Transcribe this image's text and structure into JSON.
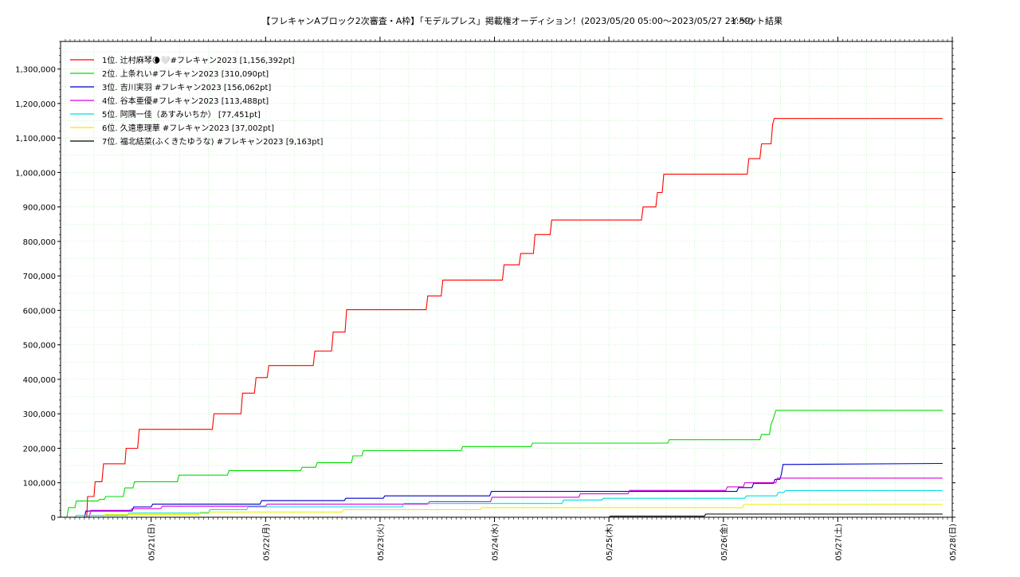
{
  "chart_data": {
    "type": "line",
    "title": "【フレキャンAブロック2次審査・A枠】「モデルプレス」掲載権オーディション！(2023/05/20 05:00〜2023/05/27 21:59)",
    "subtitle": "イベント結果",
    "xlabel": "",
    "ylabel": "",
    "grid": true,
    "legend_position": "top-left",
    "x_range": [
      "2023-05-20 05:00",
      "2023-05-28 00:00"
    ],
    "ylim": [
      0,
      1380000
    ],
    "x_ticks": [
      "05/21(日)",
      "05/22(月)",
      "05/23(火)",
      "05/24(水)",
      "05/25(木)",
      "05/26(金)",
      "05/27(土)",
      "05/28(日)"
    ],
    "x_tick_dates": [
      "2023-05-21 00:00",
      "2023-05-22 00:00",
      "2023-05-23 00:00",
      "2023-05-24 00:00",
      "2023-05-25 00:00",
      "2023-05-26 00:00",
      "2023-05-27 00:00",
      "2023-05-28 00:00"
    ],
    "y_ticks": [
      "0",
      "100,000",
      "200,000",
      "300,000",
      "400,000",
      "500,000",
      "600,000",
      "700,000",
      "800,000",
      "900,000",
      "1,000,000",
      "1,100,000",
      "1,200,000",
      "1,300,000"
    ],
    "y_tick_values": [
      0,
      100000,
      200000,
      300000,
      400000,
      500000,
      600000,
      700000,
      800000,
      900000,
      1000000,
      1100000,
      1200000,
      1300000
    ],
    "series": [
      {
        "name": "1位. 辻村麻琴🌘🤍#フレキャン2023 [1,156,392pt]",
        "color": "#ff0000",
        "points": [
          [
            "2023-05-20 10:30",
            0
          ],
          [
            "2023-05-20 10:40",
            60000
          ],
          [
            "2023-05-20 12:00",
            60000
          ],
          [
            "2023-05-20 12:15",
            103000
          ],
          [
            "2023-05-20 13:40",
            103000
          ],
          [
            "2023-05-20 14:00",
            155000
          ],
          [
            "2023-05-20 18:30",
            155000
          ],
          [
            "2023-05-20 18:45",
            200000
          ],
          [
            "2023-05-20 21:10",
            200000
          ],
          [
            "2023-05-20 21:30",
            255000
          ],
          [
            "2023-05-21 12:50",
            255000
          ],
          [
            "2023-05-21 13:10",
            300000
          ],
          [
            "2023-05-21 18:50",
            300000
          ],
          [
            "2023-05-21 19:10",
            360000
          ],
          [
            "2023-05-21 21:40",
            360000
          ],
          [
            "2023-05-21 22:00",
            405000
          ],
          [
            "2023-05-22 00:20",
            405000
          ],
          [
            "2023-05-22 00:40",
            440000
          ],
          [
            "2023-05-22 10:00",
            440000
          ],
          [
            "2023-05-22 10:20",
            482000
          ],
          [
            "2023-05-22 13:50",
            482000
          ],
          [
            "2023-05-22 14:10",
            537000
          ],
          [
            "2023-05-22 16:40",
            537000
          ],
          [
            "2023-05-22 17:00",
            602000
          ],
          [
            "2023-05-23 09:40",
            602000
          ],
          [
            "2023-05-23 10:00",
            642000
          ],
          [
            "2023-05-23 12:50",
            642000
          ],
          [
            "2023-05-23 13:10",
            688000
          ],
          [
            "2023-05-24 01:40",
            688000
          ],
          [
            "2023-05-24 02:00",
            732000
          ],
          [
            "2023-05-24 05:10",
            732000
          ],
          [
            "2023-05-24 05:30",
            765000
          ],
          [
            "2023-05-24 08:10",
            765000
          ],
          [
            "2023-05-24 08:30",
            820000
          ],
          [
            "2023-05-24 11:40",
            820000
          ],
          [
            "2023-05-24 12:00",
            862000
          ],
          [
            "2023-05-25 06:50",
            862000
          ],
          [
            "2023-05-25 07:10",
            900000
          ],
          [
            "2023-05-25 09:50",
            900000
          ],
          [
            "2023-05-25 10:10",
            942000
          ],
          [
            "2023-05-25 11:10",
            942000
          ],
          [
            "2023-05-25 11:30",
            995000
          ],
          [
            "2023-05-26 05:00",
            995000
          ],
          [
            "2023-05-26 05:20",
            1040000
          ],
          [
            "2023-05-26 07:40",
            1040000
          ],
          [
            "2023-05-26 08:00",
            1083000
          ],
          [
            "2023-05-26 10:00",
            1083000
          ],
          [
            "2023-05-26 10:20",
            1140000
          ],
          [
            "2023-05-26 10:40",
            1156392
          ],
          [
            "2023-05-27 21:59",
            1156392
          ]
        ]
      },
      {
        "name": "2位. 上条れい#フレキャン2023 [310,090pt]",
        "color": "#00dd00",
        "points": [
          [
            "2023-05-20 06:20",
            0
          ],
          [
            "2023-05-20 06:40",
            28000
          ],
          [
            "2023-05-20 08:00",
            28000
          ],
          [
            "2023-05-20 08:20",
            47000
          ],
          [
            "2023-05-20 12:50",
            47000
          ],
          [
            "2023-05-20 13:10",
            52000
          ],
          [
            "2023-05-20 14:10",
            52000
          ],
          [
            "2023-05-20 14:30",
            60000
          ],
          [
            "2023-05-20 18:10",
            60000
          ],
          [
            "2023-05-20 18:30",
            85000
          ],
          [
            "2023-05-20 20:10",
            85000
          ],
          [
            "2023-05-20 20:30",
            103000
          ],
          [
            "2023-05-21 05:30",
            103000
          ],
          [
            "2023-05-21 05:50",
            122000
          ],
          [
            "2023-05-21 16:00",
            122000
          ],
          [
            "2023-05-21 16:20",
            135000
          ],
          [
            "2023-05-22 07:20",
            135000
          ],
          [
            "2023-05-22 07:40",
            145000
          ],
          [
            "2023-05-22 10:30",
            145000
          ],
          [
            "2023-05-22 10:50",
            158000
          ],
          [
            "2023-05-22 18:00",
            158000
          ],
          [
            "2023-05-22 18:20",
            178000
          ],
          [
            "2023-05-22 20:10",
            178000
          ],
          [
            "2023-05-22 20:30",
            193000
          ],
          [
            "2023-05-23 17:00",
            193000
          ],
          [
            "2023-05-23 17:20",
            205000
          ],
          [
            "2023-05-24 07:40",
            205000
          ],
          [
            "2023-05-24 08:00",
            215000
          ],
          [
            "2023-05-25 12:20",
            215000
          ],
          [
            "2023-05-25 12:40",
            225000
          ],
          [
            "2023-05-26 07:40",
            225000
          ],
          [
            "2023-05-26 08:00",
            240000
          ],
          [
            "2023-05-26 09:40",
            240000
          ],
          [
            "2023-05-26 10:00",
            270000
          ],
          [
            "2023-05-26 10:20",
            280000
          ],
          [
            "2023-05-26 11:00",
            310090
          ],
          [
            "2023-05-27 21:59",
            310090
          ]
        ]
      },
      {
        "name": "3位. 吉川実羽 #フレキャン2023 [156,062pt]",
        "color": "#0000cc",
        "points": [
          [
            "2023-05-20 10:00",
            0
          ],
          [
            "2023-05-20 10:20",
            18000
          ],
          [
            "2023-05-20 20:00",
            18000
          ],
          [
            "2023-05-20 20:20",
            30000
          ],
          [
            "2023-05-21 00:00",
            30000
          ],
          [
            "2023-05-21 00:20",
            38000
          ],
          [
            "2023-05-21 22:50",
            38000
          ],
          [
            "2023-05-21 23:10",
            48000
          ],
          [
            "2023-05-22 16:30",
            48000
          ],
          [
            "2023-05-22 16:50",
            55000
          ],
          [
            "2023-05-23 00:40",
            55000
          ],
          [
            "2023-05-23 01:00",
            62000
          ],
          [
            "2023-05-23 23:00",
            62000
          ],
          [
            "2023-05-23 23:20",
            75000
          ],
          [
            "2023-05-26 02:50",
            75000
          ],
          [
            "2023-05-26 03:10",
            86000
          ],
          [
            "2023-05-26 06:00",
            86000
          ],
          [
            "2023-05-26 06:20",
            98000
          ],
          [
            "2023-05-26 10:30",
            98000
          ],
          [
            "2023-05-26 10:50",
            110000
          ],
          [
            "2023-05-26 11:50",
            110000
          ],
          [
            "2023-05-26 12:10",
            125000
          ],
          [
            "2023-05-26 12:30",
            153000
          ],
          [
            "2023-05-27 21:59",
            156062
          ]
        ]
      },
      {
        "name": "4位. 谷本亜優#フレキャン2023 [113,488pt]",
        "color": "#dd00dd",
        "points": [
          [
            "2023-05-20 11:00",
            0
          ],
          [
            "2023-05-20 11:20",
            20000
          ],
          [
            "2023-05-20 19:40",
            20000
          ],
          [
            "2023-05-20 20:00",
            25000
          ],
          [
            "2023-05-21 02:00",
            25000
          ],
          [
            "2023-05-21 02:20",
            32000
          ],
          [
            "2023-05-22 00:00",
            32000
          ],
          [
            "2023-05-22 00:20",
            38000
          ],
          [
            "2023-05-23 10:00",
            38000
          ],
          [
            "2023-05-23 10:20",
            45000
          ],
          [
            "2023-05-23 23:10",
            45000
          ],
          [
            "2023-05-23 23:30",
            58000
          ],
          [
            "2023-05-24 17:40",
            58000
          ],
          [
            "2023-05-24 18:00",
            68000
          ],
          [
            "2023-05-25 04:00",
            68000
          ],
          [
            "2023-05-25 04:20",
            78000
          ],
          [
            "2023-05-26 00:30",
            78000
          ],
          [
            "2023-05-26 00:50",
            88000
          ],
          [
            "2023-05-26 04:10",
            88000
          ],
          [
            "2023-05-26 04:30",
            100000
          ],
          [
            "2023-05-26 11:00",
            100000
          ],
          [
            "2023-05-26 11:20",
            113488
          ],
          [
            "2023-05-27 21:59",
            113488
          ]
        ]
      },
      {
        "name": "5位. 阿隅一佳（あすみいちか） [77,451pt]",
        "color": "#00dddd",
        "points": [
          [
            "2023-05-20 08:00",
            0
          ],
          [
            "2023-05-20 08:20",
            5000
          ],
          [
            "2023-05-20 19:00",
            5000
          ],
          [
            "2023-05-20 19:20",
            12000
          ],
          [
            "2023-05-21 12:00",
            12000
          ],
          [
            "2023-05-21 12:20",
            22000
          ],
          [
            "2023-05-21 20:00",
            22000
          ],
          [
            "2023-05-21 20:20",
            30000
          ],
          [
            "2023-05-23 04:40",
            30000
          ],
          [
            "2023-05-23 05:00",
            40000
          ],
          [
            "2023-05-24 14:10",
            40000
          ],
          [
            "2023-05-24 14:30",
            50000
          ],
          [
            "2023-05-24 22:30",
            50000
          ],
          [
            "2023-05-24 22:50",
            55000
          ],
          [
            "2023-05-26 04:30",
            55000
          ],
          [
            "2023-05-26 04:50",
            62000
          ],
          [
            "2023-05-26 11:10",
            62000
          ],
          [
            "2023-05-26 11:30",
            72000
          ],
          [
            "2023-05-26 12:40",
            72000
          ],
          [
            "2023-05-26 13:00",
            77451
          ],
          [
            "2023-05-27 21:59",
            77451
          ]
        ]
      },
      {
        "name": "6位. 久遠恵理華 #フレキャン2023 [37,002pt]",
        "color": "#eeee00",
        "points": [
          [
            "2023-05-20 05:00",
            0
          ],
          [
            "2023-05-20 14:00",
            0
          ],
          [
            "2023-05-20 14:20",
            8000
          ],
          [
            "2023-05-21 10:00",
            8000
          ],
          [
            "2023-05-21 10:20",
            15000
          ],
          [
            "2023-05-22 16:00",
            15000
          ],
          [
            "2023-05-22 16:20",
            22000
          ],
          [
            "2023-05-23 21:00",
            22000
          ],
          [
            "2023-05-23 21:20",
            28000
          ],
          [
            "2023-05-26 04:00",
            28000
          ],
          [
            "2023-05-26 04:20",
            37002
          ],
          [
            "2023-05-27 21:59",
            37002
          ]
        ]
      },
      {
        "name": "7位. 福北結菜(ふくきたゆうな) #フレキャン2023 [9,163pt]",
        "color": "#000000",
        "points": [
          [
            "2023-05-20 05:00",
            0
          ],
          [
            "2023-05-25 00:00",
            0
          ],
          [
            "2023-05-25 00:20",
            3000
          ],
          [
            "2023-05-25 20:00",
            3000
          ],
          [
            "2023-05-25 20:20",
            9163
          ],
          [
            "2023-05-27 21:59",
            9163
          ]
        ]
      }
    ]
  }
}
